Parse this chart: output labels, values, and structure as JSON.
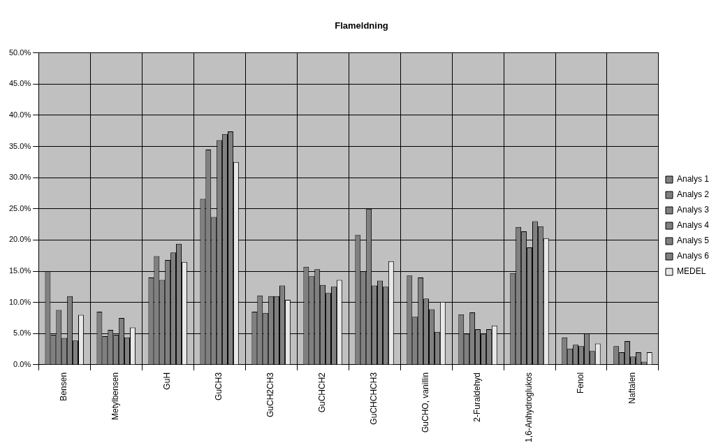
{
  "chart_data": {
    "type": "bar",
    "title": "Flameldning",
    "categories": [
      "Bensen",
      "Metylbensen",
      "GuH",
      "GuCH3",
      "GuCH2CH3",
      "GuCHCH2",
      "GuCHCHCH3",
      "GuCHO, vanillin",
      "2-Furaldehyd",
      "1,6-Anhydroglukos",
      "Fenol",
      "Naftalen"
    ],
    "series": [
      {
        "name": "Analys 1",
        "color": "#808080",
        "values": [
          15.0,
          8.5,
          14.0,
          26.6,
          8.5,
          15.7,
          20.8,
          14.3,
          8.1,
          14.7,
          4.4,
          3.0
        ]
      },
      {
        "name": "Analys 2",
        "color": "#808080",
        "values": [
          4.8,
          4.6,
          17.4,
          34.5,
          11.1,
          14.2,
          15.0,
          7.7,
          4.9,
          22.1,
          2.6,
          2.0
        ]
      },
      {
        "name": "Analys 3",
        "color": "#808080",
        "values": [
          8.8,
          5.6,
          13.6,
          23.7,
          8.3,
          15.3,
          25.0,
          14.0,
          8.4,
          21.4,
          3.2,
          3.8
        ]
      },
      {
        "name": "Analys 4",
        "color": "#808080",
        "values": [
          4.3,
          4.8,
          16.8,
          36.0,
          11.0,
          12.8,
          12.7,
          10.6,
          5.7,
          18.8,
          3.0,
          1.3
        ]
      },
      {
        "name": "Analys 5",
        "color": "#808080",
        "values": [
          11.0,
          7.5,
          18.0,
          37.0,
          11.0,
          11.5,
          13.5,
          8.9,
          4.9,
          23.0,
          5.0,
          2.0
        ]
      },
      {
        "name": "Analys 6",
        "color": "#808080",
        "values": [
          3.9,
          4.4,
          19.4,
          37.4,
          12.7,
          12.5,
          12.5,
          5.3,
          5.7,
          22.2,
          2.2,
          0.5
        ]
      },
      {
        "name": "MEDEL",
        "color": "#e8e8e8",
        "values": [
          8.0,
          6.0,
          16.5,
          32.5,
          10.4,
          13.6,
          16.6,
          10.1,
          6.3,
          20.3,
          3.4,
          2.0
        ]
      }
    ],
    "ylim": [
      0,
      50
    ],
    "yticks": [
      {
        "value": 0,
        "label": "0.0%"
      },
      {
        "value": 5,
        "label": "5.0%"
      },
      {
        "value": 10,
        "label": "10.0%"
      },
      {
        "value": 15,
        "label": "15.0%"
      },
      {
        "value": 20,
        "label": "20.0%"
      },
      {
        "value": 25,
        "label": "25.0%"
      },
      {
        "value": 30,
        "label": "30.0%"
      },
      {
        "value": 35,
        "label": "35.0%"
      },
      {
        "value": 40,
        "label": "40.0%"
      },
      {
        "value": 45,
        "label": "45.0%"
      },
      {
        "value": 50,
        "label": "50.0%"
      }
    ],
    "grid": true,
    "legend": "right"
  }
}
